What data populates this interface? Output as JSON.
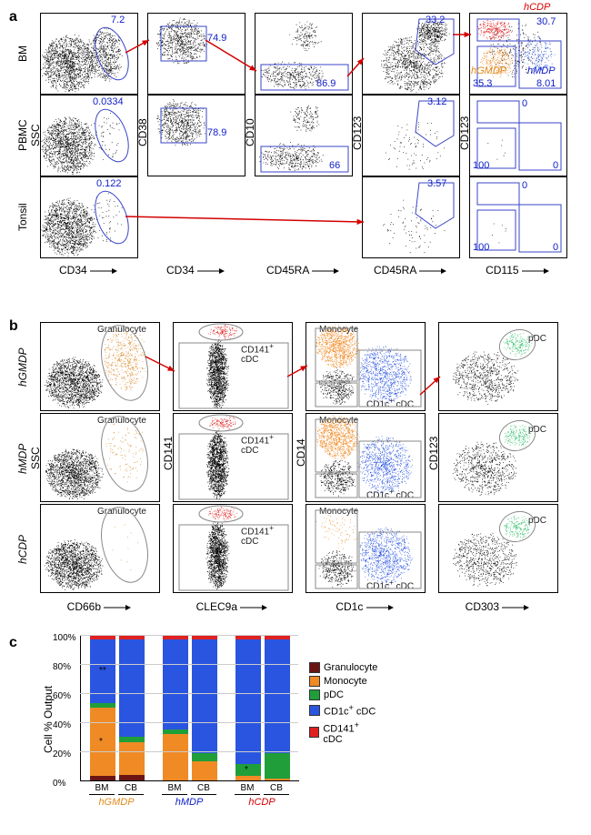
{
  "colors": {
    "black": "#000000",
    "blue": "#1221c9",
    "gate_blue": "#3a46c7",
    "red": "#d40000",
    "orange": "#e08a1c",
    "green": "#1f9e3a",
    "pop_blue": "#2a55e0",
    "pop_orange": "#f08a24",
    "pop_red": "#e02020",
    "pop_green": "#33c06a",
    "grey": "#888888",
    "darkred": "#6b1414"
  },
  "panelA": {
    "label": "a",
    "rows": [
      "BM",
      "PBMC",
      "Tonsil"
    ],
    "col_x_axes": [
      "CD34",
      "CD34",
      "CD45RA",
      "CD45RA",
      "CD115"
    ],
    "col_y_axes": [
      "SSC",
      "CD38",
      "CD10",
      "CD123",
      "CD123"
    ],
    "vals": {
      "r0": [
        "7.2",
        "74.9",
        "86.9",
        "33.2",
        "30.7",
        "35.3",
        "8.01"
      ],
      "r1": [
        "0.0334",
        "78.9",
        "66",
        "3.12",
        "0",
        "100",
        "0"
      ],
      "r2": [
        "0.122",
        "",
        "",
        "3.57",
        "0",
        "100",
        "0"
      ]
    },
    "pop_labels": {
      "hCDP": "hCDP",
      "hGMDP": "hGMDP",
      "hMDP": "hMDP"
    }
  },
  "panelB": {
    "label": "b",
    "rows": [
      "hGMDP",
      "hMDP",
      "hCDP"
    ],
    "col_x_axes": [
      "CD66b",
      "CLEC9a",
      "CD1c",
      "CD303"
    ],
    "col_y_axes": [
      "SSC",
      "CD141",
      "CD14",
      "CD123"
    ],
    "pop_labels": {
      "gran": "Granulocyte",
      "cd141": "CD141",
      "cd141_suffix": "cDC",
      "mono": "Monocyte",
      "cd1c": "CD1c",
      "cd1c_suffix": " cDC",
      "pdc": "pDC"
    }
  },
  "panelC": {
    "label": "c",
    "y_title": "Cell % Output",
    "y_ticks": [
      "0%",
      "20%",
      "40%",
      "60%",
      "80%",
      "100%"
    ],
    "groups": [
      "hGMDP",
      "hMDP",
      "hCDP"
    ],
    "group_colors": [
      "#e08a1c",
      "#1221c9",
      "#d40000"
    ],
    "bar_sublabels": [
      "BM",
      "CB",
      "BM",
      "CB",
      "BM",
      "CB"
    ],
    "legend": [
      {
        "label": "Granulocyte",
        "color": "#6b1414"
      },
      {
        "label": "Monocyte",
        "color": "#f08a24"
      },
      {
        "label": "pDC",
        "color": "#1f9e3a"
      },
      {
        "label_html": "CD1c<sup>+</sup>  cDC",
        "color": "#2a55e0"
      },
      {
        "label_html": "CD141<sup>+</sup> cDC",
        "color": "#e02020"
      }
    ],
    "bars": [
      {
        "x": 10,
        "gran": 3,
        "mono": 47,
        "pdc": 3,
        "cd1c": 44,
        "cd141": 3,
        "sig_mono": "*",
        "sig_cd1c": "**"
      },
      {
        "x": 42,
        "gran": 4,
        "mono": 22,
        "pdc": 4,
        "cd1c": 67,
        "cd141": 3
      },
      {
        "x": 90,
        "gran": 0,
        "mono": 32,
        "pdc": 3,
        "cd1c": 62,
        "cd141": 3
      },
      {
        "x": 122,
        "gran": 0,
        "mono": 13,
        "pdc": 6,
        "cd1c": 78,
        "cd141": 3
      },
      {
        "x": 170,
        "gran": 0,
        "mono": 3,
        "pdc": 8,
        "cd1c": 86,
        "cd141": 3,
        "sig_pdc": "*"
      },
      {
        "x": 202,
        "gran": 0,
        "mono": 1,
        "pdc": 18,
        "cd1c": 78,
        "cd141": 3
      }
    ]
  }
}
